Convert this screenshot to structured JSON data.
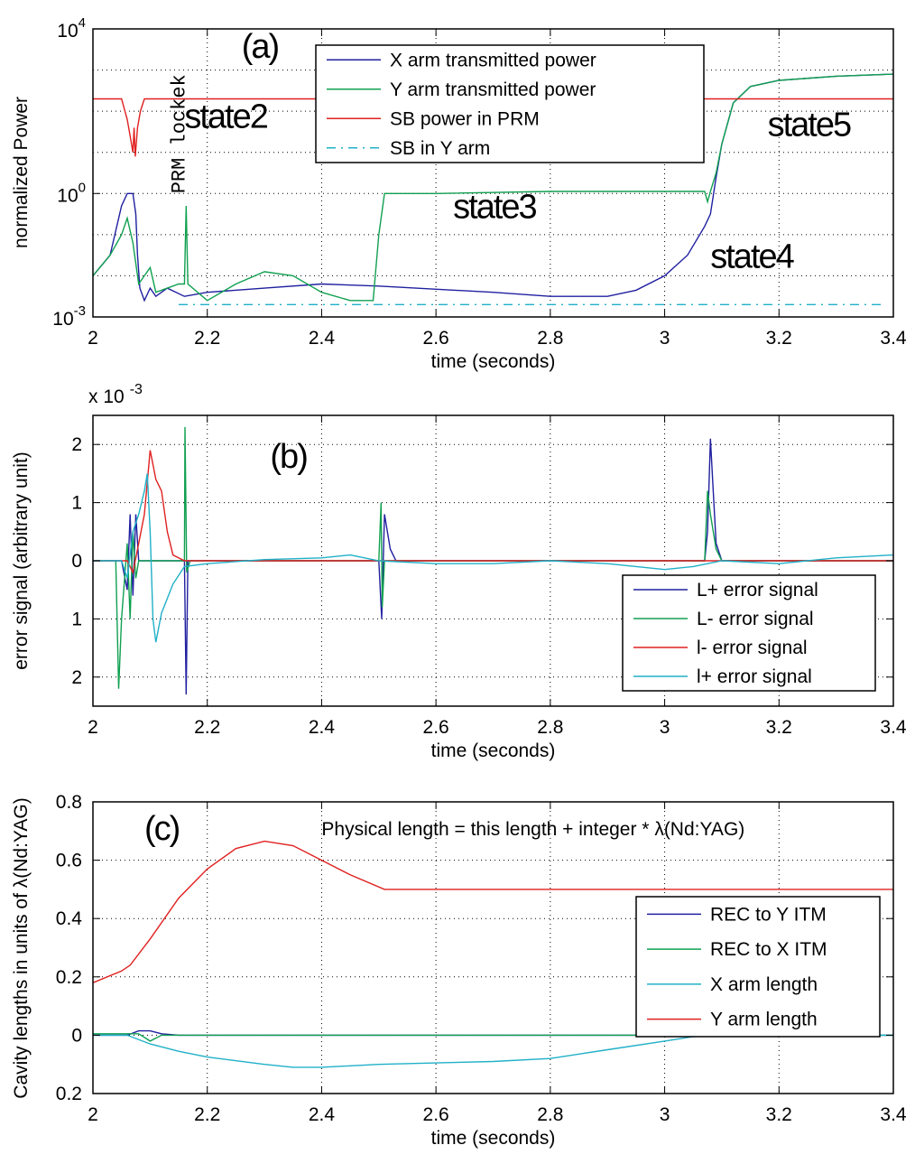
{
  "chart_data": [
    {
      "type": "line",
      "xlabel": "time (seconds)",
      "ylabel": "normalized Power",
      "xlim": [
        2,
        3.4
      ],
      "xticks": [
        "2",
        "2.2",
        "2.4",
        "2.6",
        "2.8",
        "3",
        "3.2",
        "3.4"
      ],
      "ylim_log10": [
        -3,
        4
      ],
      "yscale": "log",
      "yticks": [
        {
          "v": -3,
          "base": "10",
          "exp": "-3"
        },
        {
          "v": 0,
          "base": "10",
          "exp": "0"
        },
        {
          "v": 4,
          "base": "10",
          "exp": "4"
        }
      ],
      "grid": true,
      "legend_position": "top-center",
      "series": [
        {
          "name": "X arm transmitted power",
          "color": "#2020a0",
          "dash": "",
          "log10_points": [
            [
              2,
              -2
            ],
            [
              2.03,
              -1.5
            ],
            [
              2.05,
              -0.3
            ],
            [
              2.06,
              0.0
            ],
            [
              2.07,
              0.0
            ],
            [
              2.075,
              -0.5
            ],
            [
              2.078,
              -1.5
            ],
            [
              2.082,
              -2.3
            ],
            [
              2.09,
              -2.6
            ],
            [
              2.1,
              -2.3
            ],
            [
              2.11,
              -2.5
            ],
            [
              2.13,
              -2.3
            ],
            [
              2.16,
              -2.5
            ],
            [
              2.2,
              -2.4
            ],
            [
              2.3,
              -2.3
            ],
            [
              2.4,
              -2.2
            ],
            [
              2.5,
              -2.25
            ],
            [
              2.7,
              -2.4
            ],
            [
              2.8,
              -2.5
            ],
            [
              2.9,
              -2.5
            ],
            [
              2.95,
              -2.35
            ],
            [
              3.0,
              -2.0
            ],
            [
              3.04,
              -1.5
            ],
            [
              3.07,
              -0.8
            ],
            [
              3.08,
              -0.5
            ],
            [
              3.09,
              0.4
            ],
            [
              3.1,
              1.2
            ],
            [
              3.12,
              2.2
            ],
            [
              3.15,
              2.6
            ],
            [
              3.2,
              2.75
            ],
            [
              3.3,
              2.85
            ],
            [
              3.4,
              2.9
            ]
          ]
        },
        {
          "name": "Y arm transmitted power",
          "color": "#10a050",
          "dash": "",
          "log10_points": [
            [
              2,
              -2.0
            ],
            [
              2.03,
              -1.5
            ],
            [
              2.05,
              -1.0
            ],
            [
              2.06,
              -0.6
            ],
            [
              2.07,
              -1.2
            ],
            [
              2.08,
              -2.2
            ],
            [
              2.09,
              -2.0
            ],
            [
              2.1,
              -1.8
            ],
            [
              2.11,
              -2.4
            ],
            [
              2.15,
              -2.2
            ],
            [
              2.16,
              -2.2
            ],
            [
              2.163,
              -0.3
            ],
            [
              2.166,
              -2.2
            ],
            [
              2.2,
              -2.6
            ],
            [
              2.25,
              -2.2
            ],
            [
              2.3,
              -1.9
            ],
            [
              2.35,
              -2.0
            ],
            [
              2.4,
              -2.4
            ],
            [
              2.45,
              -2.6
            ],
            [
              2.49,
              -2.6
            ],
            [
              2.5,
              -1.0
            ],
            [
              2.51,
              0.0
            ],
            [
              2.6,
              0.0
            ],
            [
              2.8,
              0.05
            ],
            [
              3.0,
              0.05
            ],
            [
              3.07,
              0.05
            ],
            [
              3.075,
              -0.2
            ],
            [
              3.08,
              0.05
            ],
            [
              3.09,
              0.5
            ],
            [
              3.1,
              1.2
            ],
            [
              3.12,
              2.2
            ],
            [
              3.15,
              2.6
            ],
            [
              3.2,
              2.75
            ],
            [
              3.3,
              2.85
            ],
            [
              3.4,
              2.9
            ]
          ]
        },
        {
          "name": "SB power in PRM",
          "color": "#e02020",
          "dash": "",
          "log10_points": [
            [
              2,
              2.3
            ],
            [
              2.05,
              2.3
            ],
            [
              2.06,
              1.8
            ],
            [
              2.065,
              1.4
            ],
            [
              2.07,
              1.0
            ],
            [
              2.072,
              1.6
            ],
            [
              2.074,
              0.9
            ],
            [
              2.078,
              1.6
            ],
            [
              2.083,
              2.0
            ],
            [
              2.09,
              2.3
            ],
            [
              2.5,
              2.3
            ],
            [
              3.0,
              2.3
            ],
            [
              3.4,
              2.3
            ]
          ]
        },
        {
          "name": "SB in Y arm",
          "color": "#20b0c8",
          "dash": "10,6,2,6",
          "log10_points": [
            [
              2.15,
              -2.7
            ],
            [
              2.5,
              -2.7
            ],
            [
              3.0,
              -2.7
            ],
            [
              3.38,
              -2.7
            ]
          ]
        }
      ],
      "annotations": [
        {
          "text": "(a)",
          "x": 2.26,
          "y": 3.3
        },
        {
          "text": "state2",
          "x": 2.16,
          "y": 1.6
        },
        {
          "text": "state3",
          "x": 2.63,
          "y": -0.6
        },
        {
          "text": "state4",
          "x": 3.08,
          "y": -1.8
        },
        {
          "text": "state5",
          "x": 3.18,
          "y": 1.4
        },
        {
          "text": "PRM lockek",
          "x": 2.16,
          "y": 0.0,
          "rotate": -90
        }
      ]
    },
    {
      "type": "line",
      "xlabel": "time (seconds)",
      "ylabel": "error signal (arbitrary unit)",
      "y_multiplier": "x 10",
      "y_multiplier_exp": "-3",
      "xlim": [
        2,
        3.4
      ],
      "ylim": [
        -2.5,
        2.5
      ],
      "xticks": [
        "2",
        "2.2",
        "2.4",
        "2.6",
        "2.8",
        "3",
        "3.2",
        "3.4"
      ],
      "yticks": [
        {
          "v": 2,
          "label": "2"
        },
        {
          "v": 1,
          "label": "1"
        },
        {
          "v": 0,
          "label": "0"
        },
        {
          "v": -1,
          "label": "1"
        },
        {
          "v": -2,
          "label": "2"
        }
      ],
      "grid": true,
      "legend_position": "bottom-right",
      "series": [
        {
          "name": "L+ error signal",
          "color": "#2020a0",
          "points": [
            [
              2,
              0
            ],
            [
              2.05,
              0
            ],
            [
              2.06,
              -0.5
            ],
            [
              2.065,
              0.8
            ],
            [
              2.07,
              -0.6
            ],
            [
              2.075,
              0.8
            ],
            [
              2.08,
              0
            ],
            [
              2.1,
              0
            ],
            [
              2.16,
              0
            ],
            [
              2.163,
              -2.3
            ],
            [
              2.166,
              0
            ],
            [
              2.5,
              0
            ],
            [
              2.505,
              -1.0
            ],
            [
              2.51,
              0.8
            ],
            [
              2.52,
              0.2
            ],
            [
              2.53,
              0
            ],
            [
              3.07,
              0
            ],
            [
              3.075,
              0.5
            ],
            [
              3.08,
              2.1
            ],
            [
              3.085,
              1.2
            ],
            [
              3.09,
              0.3
            ],
            [
              3.1,
              0
            ],
            [
              3.4,
              0
            ]
          ]
        },
        {
          "name": "L-  error signal",
          "color": "#10a050",
          "points": [
            [
              2,
              0
            ],
            [
              2.04,
              0
            ],
            [
              2.045,
              -2.2
            ],
            [
              2.05,
              -1.0
            ],
            [
              2.06,
              0.3
            ],
            [
              2.065,
              -1.0
            ],
            [
              2.07,
              0.5
            ],
            [
              2.075,
              -0.3
            ],
            [
              2.08,
              0
            ],
            [
              2.16,
              0
            ],
            [
              2.161,
              2.3
            ],
            [
              2.164,
              -0.2
            ],
            [
              2.17,
              0
            ],
            [
              2.5,
              0
            ],
            [
              2.504,
              1.0
            ],
            [
              2.506,
              -0.8
            ],
            [
              2.51,
              0
            ],
            [
              3.07,
              0
            ],
            [
              3.075,
              1.2
            ],
            [
              3.08,
              0.8
            ],
            [
              3.09,
              0.2
            ],
            [
              3.1,
              0
            ],
            [
              3.4,
              0
            ]
          ]
        },
        {
          "name": "l-  error signal",
          "color": "#e02020",
          "points": [
            [
              2,
              0
            ],
            [
              2.06,
              0
            ],
            [
              2.07,
              -0.2
            ],
            [
              2.08,
              0.3
            ],
            [
              2.09,
              0.8
            ],
            [
              2.1,
              1.9
            ],
            [
              2.11,
              1.4
            ],
            [
              2.12,
              1.2
            ],
            [
              2.13,
              0.5
            ],
            [
              2.14,
              0.1
            ],
            [
              2.16,
              0
            ],
            [
              3.4,
              0
            ]
          ]
        },
        {
          "name": "l+ error signal",
          "color": "#20b0c8",
          "points": [
            [
              2,
              0
            ],
            [
              2.05,
              0
            ],
            [
              2.06,
              -0.3
            ],
            [
              2.07,
              0.5
            ],
            [
              2.08,
              0.8
            ],
            [
              2.09,
              1.2
            ],
            [
              2.095,
              1.5
            ],
            [
              2.1,
              0.5
            ],
            [
              2.105,
              -1.0
            ],
            [
              2.11,
              -1.4
            ],
            [
              2.12,
              -0.9
            ],
            [
              2.14,
              -0.4
            ],
            [
              2.16,
              -0.1
            ],
            [
              2.2,
              -0.05
            ],
            [
              2.3,
              0.02
            ],
            [
              2.4,
              0.05
            ],
            [
              2.45,
              0.1
            ],
            [
              2.5,
              0
            ],
            [
              2.6,
              -0.05
            ],
            [
              2.7,
              -0.05
            ],
            [
              2.8,
              0
            ],
            [
              2.9,
              -0.05
            ],
            [
              3.0,
              -0.15
            ],
            [
              3.05,
              -0.1
            ],
            [
              3.1,
              0
            ],
            [
              3.2,
              -0.05
            ],
            [
              3.3,
              0.05
            ],
            [
              3.4,
              0.1
            ]
          ]
        }
      ],
      "annotations": [
        {
          "text": "(b)",
          "x": 2.31,
          "y": 1.6
        }
      ]
    },
    {
      "type": "line",
      "xlabel": "time (seconds)",
      "ylabel": "Cavity lengths in units of λ(Nd:YAG)",
      "xlim": [
        2,
        3.4
      ],
      "ylim": [
        -0.2,
        0.8
      ],
      "xticks": [
        "2",
        "2.2",
        "2.4",
        "2.6",
        "2.8",
        "3",
        "3.2",
        "3.4"
      ],
      "yticks": [
        {
          "v": 0.8,
          "label": "0.8"
        },
        {
          "v": 0.6,
          "label": "0.6"
        },
        {
          "v": 0.4,
          "label": "0.4"
        },
        {
          "v": 0.2,
          "label": "0.2"
        },
        {
          "v": 0,
          "label": "0"
        },
        {
          "v": -0.2,
          "label": "0.2"
        }
      ],
      "grid": true,
      "legend_position": "right",
      "series": [
        {
          "name": "REC to Y ITM",
          "color": "#2020a0",
          "points": [
            [
              2,
              0
            ],
            [
              2.06,
              0
            ],
            [
              2.08,
              0.015
            ],
            [
              2.1,
              0.015
            ],
            [
              2.12,
              0.005
            ],
            [
              2.15,
              0
            ],
            [
              3.4,
              0
            ]
          ]
        },
        {
          "name": "REC to X ITM",
          "color": "#10a050",
          "points": [
            [
              2,
              0.005
            ],
            [
              2.06,
              0.005
            ],
            [
              2.08,
              0.005
            ],
            [
              2.1,
              -0.02
            ],
            [
              2.12,
              0
            ],
            [
              3.4,
              0
            ]
          ]
        },
        {
          "name": "X arm length",
          "color": "#20b0c8",
          "points": [
            [
              2,
              0
            ],
            [
              2.06,
              0
            ],
            [
              2.1,
              -0.03
            ],
            [
              2.15,
              -0.055
            ],
            [
              2.2,
              -0.075
            ],
            [
              2.3,
              -0.1
            ],
            [
              2.35,
              -0.11
            ],
            [
              2.4,
              -0.11
            ],
            [
              2.5,
              -0.1
            ],
            [
              2.6,
              -0.095
            ],
            [
              2.7,
              -0.09
            ],
            [
              2.8,
              -0.08
            ],
            [
              2.9,
              -0.05
            ],
            [
              3.0,
              -0.02
            ],
            [
              3.05,
              -0.005
            ],
            [
              3.1,
              0
            ],
            [
              3.4,
              0
            ]
          ]
        },
        {
          "name": "Y arm length",
          "color": "#e02020",
          "points": [
            [
              2,
              0.18
            ],
            [
              2.05,
              0.22
            ],
            [
              2.065,
              0.24
            ],
            [
              2.1,
              0.33
            ],
            [
              2.15,
              0.47
            ],
            [
              2.2,
              0.57
            ],
            [
              2.25,
              0.64
            ],
            [
              2.3,
              0.665
            ],
            [
              2.35,
              0.65
            ],
            [
              2.4,
              0.6
            ],
            [
              2.45,
              0.55
            ],
            [
              2.51,
              0.5
            ],
            [
              2.6,
              0.5
            ],
            [
              3.0,
              0.5
            ],
            [
              3.4,
              0.5
            ]
          ]
        }
      ],
      "annotations": [
        {
          "text": "(c)",
          "x": 2.09,
          "y": 0.67
        },
        {
          "text": "Physical length = this length + integer * λ(Nd:YAG)",
          "x": 2.4,
          "y": 0.685
        }
      ]
    }
  ]
}
